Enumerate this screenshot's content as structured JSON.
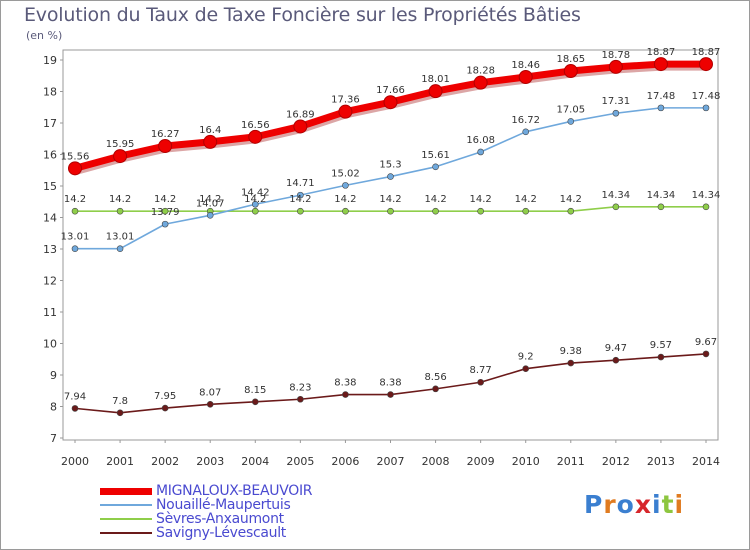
{
  "title": "Evolution du Taux de Taxe Foncière sur les Propriétés Bâties",
  "unit_label": "(en %)",
  "logo_text": "Proxiti",
  "chart_data": {
    "type": "line",
    "title": "Evolution du Taux de Taxe Foncière sur les Propriétés Bâties",
    "ylabel": "(en %)",
    "x": [
      "2000",
      "2001",
      "2002",
      "2003",
      "2004",
      "2005",
      "2006",
      "2007",
      "2008",
      "2009",
      "2010",
      "2011",
      "2012",
      "2013",
      "2014"
    ],
    "ylim": [
      7,
      19
    ],
    "yticks": [
      "7",
      "8",
      "9",
      "10",
      "11",
      "12",
      "13",
      "14",
      "15",
      "16",
      "17",
      "18",
      "19"
    ],
    "grid": false,
    "legend_position": "bottom",
    "series": [
      {
        "name": "MIGNALOUX-BEAUVOIR",
        "color": "#ee0000",
        "values": [
          15.56,
          15.95,
          16.27,
          16.4,
          16.56,
          16.89,
          17.36,
          17.66,
          18.01,
          18.28,
          18.46,
          18.65,
          18.78,
          18.87,
          18.87
        ],
        "labels": [
          "15.56",
          "15.95",
          "16.27",
          "16.4",
          "16.56",
          "16.89",
          "17.36",
          "17.66",
          "18.01",
          "18.28",
          "18.46",
          "18.65",
          "18.78",
          "18.87",
          "18.87"
        ]
      },
      {
        "name": "Nouaillé-Maupertuis",
        "color": "#6fa8dc",
        "values": [
          13.01,
          13.01,
          13.79,
          14.07,
          14.42,
          14.71,
          15.02,
          15.3,
          15.61,
          16.08,
          16.72,
          17.05,
          17.31,
          17.48,
          17.48
        ],
        "labels": [
          "13.01",
          "13.01",
          "13.79",
          "14.07",
          "14.42",
          "14.71",
          "15.02",
          "15.3",
          "15.61",
          "16.08",
          "16.72",
          "17.05",
          "17.31",
          "17.48",
          "17.48"
        ]
      },
      {
        "name": "Sèvres-Anxaumont",
        "color": "#8fce4a",
        "values": [
          14.2,
          14.2,
          14.2,
          14.2,
          14.2,
          14.2,
          14.2,
          14.2,
          14.2,
          14.2,
          14.2,
          14.2,
          14.34,
          14.34,
          14.34
        ],
        "labels": [
          "14.2",
          "14.2",
          "14.2",
          "14.2",
          "14.2",
          "14.2",
          "14.2",
          "14.2",
          "14.2",
          "14.2",
          "14.2",
          "14.2",
          "14.34",
          "14.34",
          "14.34"
        ]
      },
      {
        "name": "Savigny-Lévescault",
        "color": "#6b1a1a",
        "values": [
          7.94,
          7.8,
          7.95,
          8.07,
          8.15,
          8.23,
          8.38,
          8.38,
          8.56,
          8.77,
          9.2,
          9.38,
          9.47,
          9.57,
          9.67
        ],
        "labels": [
          "7.94",
          "7.8",
          "7.95",
          "8.07",
          "8.15",
          "8.23",
          "8.38",
          "8.38",
          "8.56",
          "8.77",
          "9.2",
          "9.38",
          "9.47",
          "9.57",
          "9.67"
        ]
      }
    ]
  },
  "legend": [
    {
      "label": "MIGNALOUX-BEAUVOIR",
      "color": "#ee0000",
      "text_color": "#4a4ad0"
    },
    {
      "label": "Nouaillé-Maupertuis",
      "color": "#6fa8dc",
      "text_color": "#4a4ad0"
    },
    {
      "label": "Sèvres-Anxaumont",
      "color": "#8fce4a",
      "text_color": "#4a4ad0"
    },
    {
      "label": "Savigny-Lévescault",
      "color": "#6b1a1a",
      "text_color": "#4a4ad0"
    }
  ]
}
